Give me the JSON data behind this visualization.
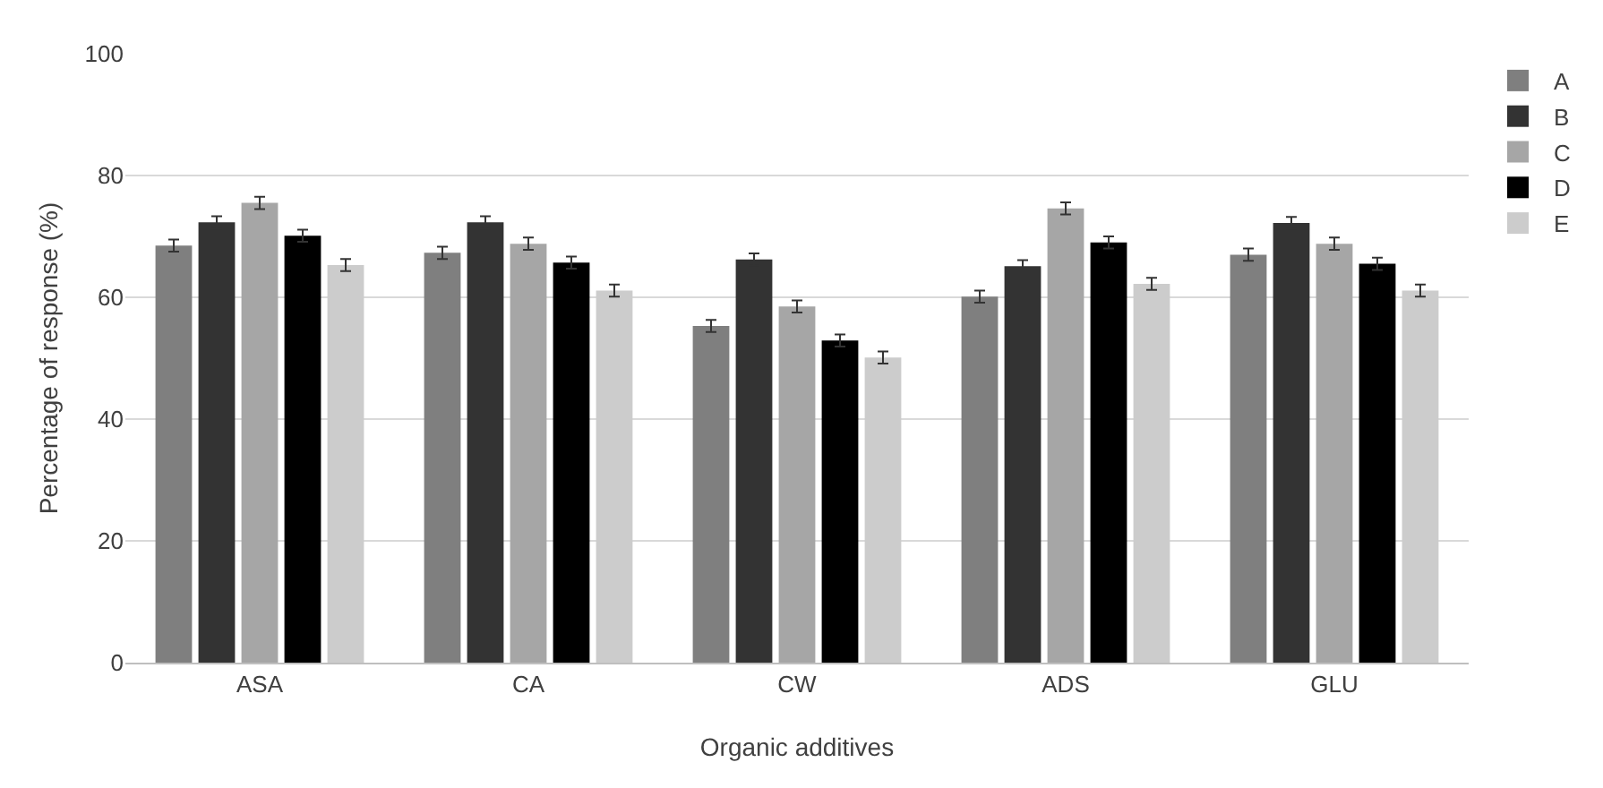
{
  "chart_data": {
    "type": "bar",
    "xlabel": "Organic additives",
    "ylabel": "Percentage of response (%)",
    "categories": [
      "ASA",
      "CA",
      "CW",
      "ADS",
      "GLU"
    ],
    "series": [
      {
        "name": "A",
        "color": "#7f7f7f",
        "values": [
          68.5,
          67.3,
          55.3,
          60.1,
          67.0
        ],
        "errors": [
          1,
          1,
          1,
          1,
          1
        ]
      },
      {
        "name": "B",
        "color": "#333333",
        "values": [
          72.3,
          72.3,
          66.2,
          65.1,
          72.2
        ],
        "errors": [
          1,
          1,
          1,
          1,
          1
        ]
      },
      {
        "name": "C",
        "color": "#a6a6a6",
        "values": [
          75.5,
          68.8,
          58.5,
          74.6,
          68.8
        ],
        "errors": [
          1,
          1,
          1,
          1,
          1
        ]
      },
      {
        "name": "D",
        "color": "#000000",
        "values": [
          70.1,
          65.7,
          52.9,
          69.0,
          65.5
        ],
        "errors": [
          1,
          1,
          1,
          1,
          1
        ]
      },
      {
        "name": "E",
        "color": "#cccccc",
        "values": [
          65.3,
          61.1,
          50.1,
          62.2,
          61.1
        ],
        "errors": [
          1,
          1,
          1,
          1,
          1
        ]
      }
    ],
    "ylim": [
      0,
      100
    ],
    "yticks": [
      0,
      20,
      40,
      60,
      80,
      100
    ],
    "grid": "y",
    "legend": "right"
  }
}
